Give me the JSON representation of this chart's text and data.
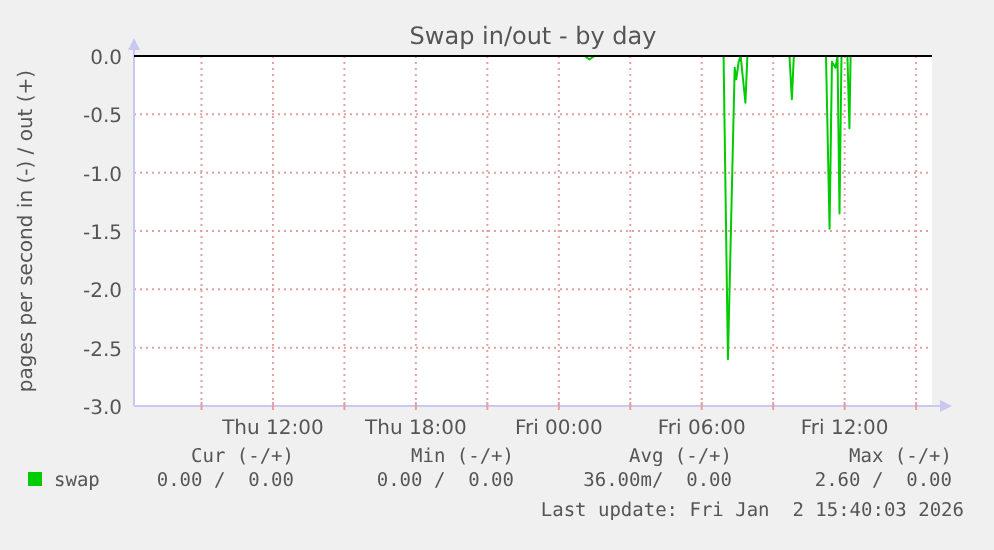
{
  "chart_data": {
    "type": "line",
    "title": "Swap in/out - by day",
    "ylabel": "pages per second in (-) / out (+)",
    "xlim": [
      "2026-01-01T06:10",
      "2026-01-02T15:40"
    ],
    "xticks": [
      {
        "value": "2026-01-01T09:00",
        "label": null
      },
      {
        "value": "2026-01-01T12:00",
        "label": "Thu 12:00"
      },
      {
        "value": "2026-01-01T15:00",
        "label": null
      },
      {
        "value": "2026-01-01T18:00",
        "label": "Thu 18:00"
      },
      {
        "value": "2026-01-01T21:00",
        "label": null
      },
      {
        "value": "2026-01-02T00:00",
        "label": "Fri 00:00"
      },
      {
        "value": "2026-01-02T03:00",
        "label": null
      },
      {
        "value": "2026-01-02T06:00",
        "label": "Fri 06:00"
      },
      {
        "value": "2026-01-02T09:00",
        "label": null
      },
      {
        "value": "2026-01-02T12:00",
        "label": "Fri 12:00"
      },
      {
        "value": "2026-01-02T15:00",
        "label": null
      }
    ],
    "ylim": [
      -3,
      0
    ],
    "yticks": [
      {
        "value": 0,
        "label": "0.0"
      },
      {
        "value": -0.5,
        "label": "-0.5"
      },
      {
        "value": -1,
        "label": "-1.0"
      },
      {
        "value": -1.5,
        "label": "-1.5"
      },
      {
        "value": -2,
        "label": "-2.0"
      },
      {
        "value": -2.5,
        "label": "-2.5"
      },
      {
        "value": -3,
        "label": "-3.0"
      }
    ],
    "grid": true,
    "legend": "bottom left",
    "x": [
      "2026-01-01T06:10",
      "2026-01-02T01:05",
      "2026-01-02T01:17",
      "2026-01-02T01:30",
      "2026-01-02T06:55",
      "2026-01-02T07:06",
      "2026-01-02T07:23",
      "2026-01-02T07:27",
      "2026-01-02T07:33",
      "2026-01-02T07:38",
      "2026-01-02T07:50",
      "2026-01-02T07:55",
      "2026-01-02T09:41",
      "2026-01-02T09:47",
      "2026-01-02T09:52",
      "2026-01-02T11:13",
      "2026-01-02T11:22",
      "2026-01-02T11:28",
      "2026-01-02T11:37",
      "2026-01-02T11:42",
      "2026-01-02T11:47",
      "2026-01-02T11:52",
      "2026-01-02T12:07",
      "2026-01-02T12:12",
      "2026-01-02T12:15",
      "2026-01-02T15:40"
    ],
    "series": [
      {
        "name": "swap",
        "color": "#00cc00",
        "values": [
          0,
          0,
          -0.03,
          0,
          0,
          -2.6,
          -0.1,
          -0.2,
          -0.05,
          0,
          -0.4,
          0,
          0,
          -0.37,
          0,
          0,
          -1.48,
          -0.05,
          -0.1,
          0,
          -1.35,
          0,
          0,
          -0.62,
          0,
          0
        ]
      }
    ],
    "ref_lines": [
      {
        "axis": "y",
        "value": 0,
        "color": "#000000"
      }
    ],
    "annotations": [
      "Cur (-/+)",
      "Min (-/+)",
      "Avg (-/+)",
      "Max (-/+)",
      "0.00 /  0.00",
      "0.00 /  0.00",
      "36.00m/  0.00",
      "2.60 /  0.00",
      "Last update: Fri Jan  2 15:40:03 2026"
    ]
  }
}
